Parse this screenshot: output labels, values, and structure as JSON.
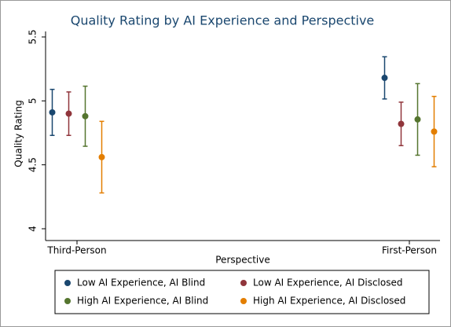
{
  "chart_data": {
    "type": "dot-errorbar",
    "title": "Quality Rating by AI Experience and Perspective",
    "x_label": "Perspective",
    "y_label": "Quality Rating",
    "categories": [
      "Third-Person",
      "First-Person"
    ],
    "ylim": [
      4,
      5.5
    ],
    "yticks": [
      4,
      4.5,
      5,
      5.5
    ],
    "legend": "bottom",
    "series": [
      {
        "name": "Low AI Experience, AI Blind",
        "color": "#1a476f",
        "values": [
          4.91,
          5.18
        ],
        "errors": [
          0.18,
          0.165
        ]
      },
      {
        "name": "Low AI Experience, AI Disclosed",
        "color": "#90353b",
        "values": [
          4.9,
          4.82
        ],
        "errors": [
          0.17,
          0.17
        ]
      },
      {
        "name": "High AI Experience, AI Blind",
        "color": "#55752f",
        "values": [
          4.88,
          4.855
        ],
        "errors": [
          0.235,
          0.28
        ]
      },
      {
        "name": "High AI Experience, AI Disclosed",
        "color": "#e37e00",
        "values": [
          4.56,
          4.76
        ],
        "errors": [
          0.28,
          0.275
        ]
      }
    ]
  }
}
